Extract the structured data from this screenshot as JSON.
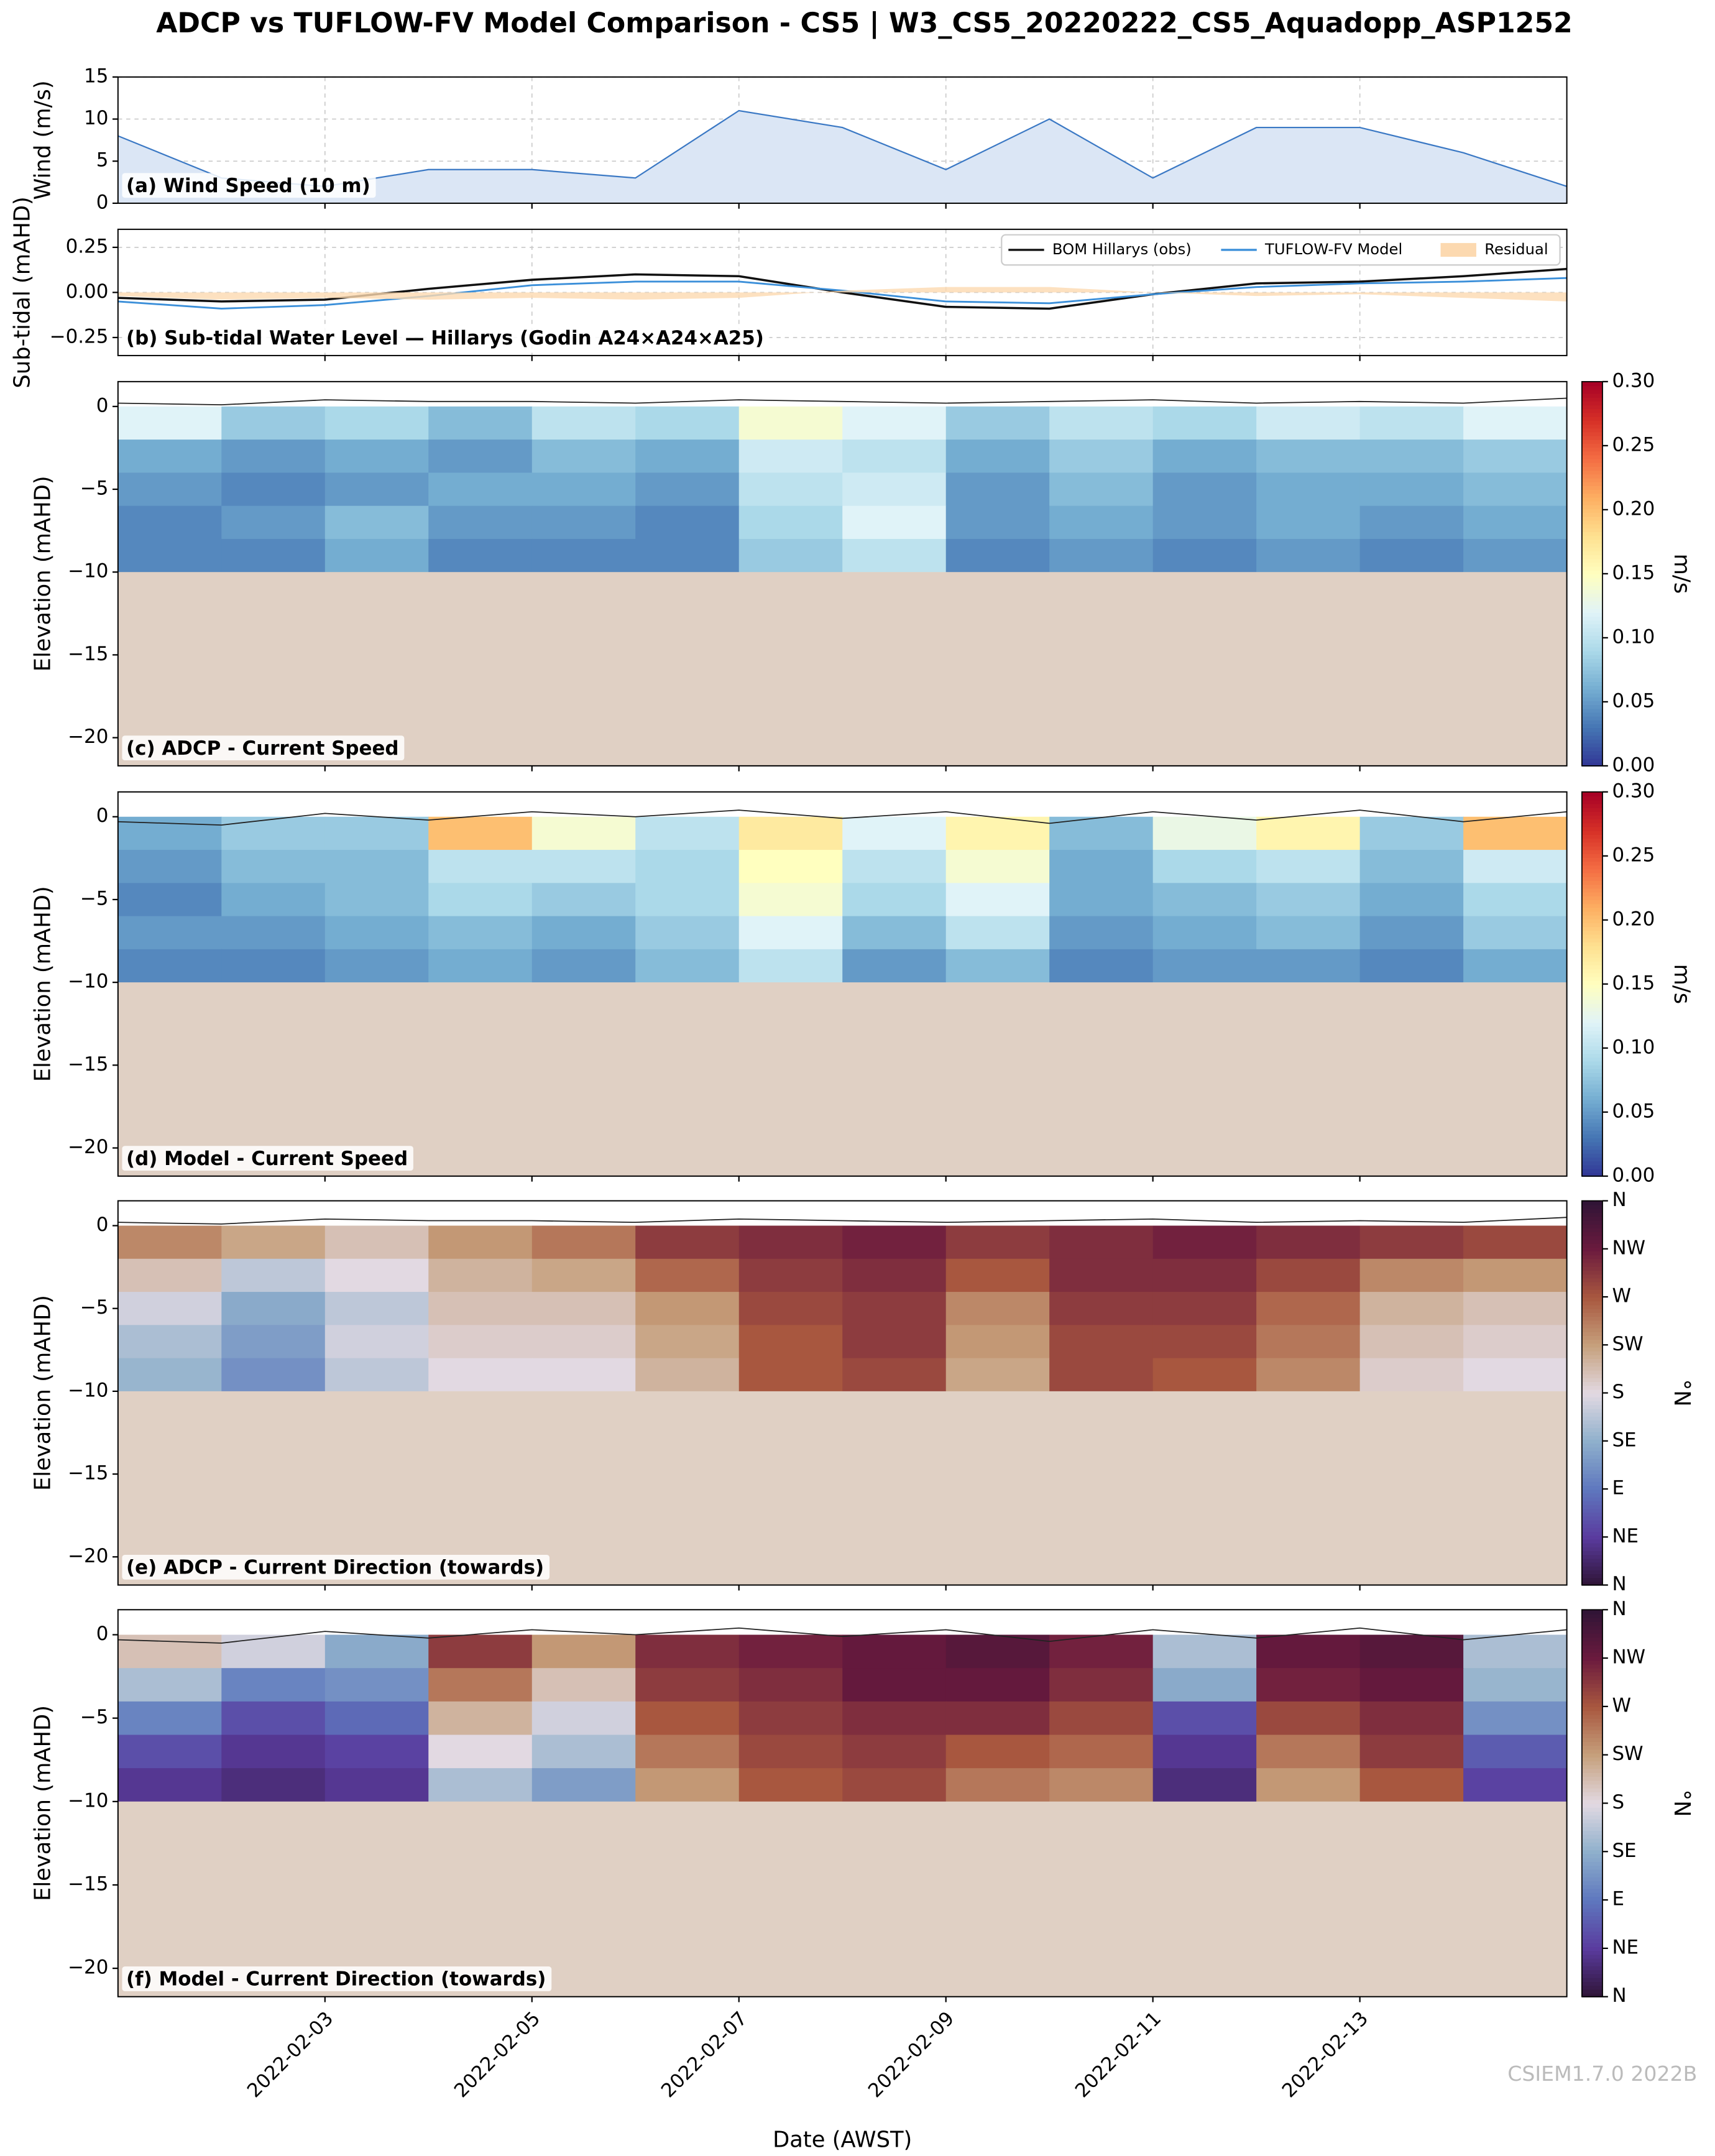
{
  "title": "ADCP vs TUFLOW-FV Model Comparison - CS5 | W3_CS5_20220222_CS5_Aquadopp_ASP1252",
  "watermark": "CSIEM1.7.0 2022B",
  "chart_data": [
    {
      "type": "area",
      "ylabel": "Wind (m/s)",
      "annotation": "(a) Wind Speed (10 m)",
      "color": "#3a78c4",
      "grid": true,
      "x": [
        "2022-02-01",
        "2022-02-02",
        "2022-02-03",
        "2022-02-04",
        "2022-02-05",
        "2022-02-06",
        "2022-02-07",
        "2022-02-08",
        "2022-02-09",
        "2022-02-10",
        "2022-02-11",
        "2022-02-12",
        "2022-02-13",
        "2022-02-14",
        "2022-02-15"
      ],
      "values": [
        8,
        3,
        2,
        4,
        4,
        3,
        11,
        9,
        4,
        10,
        3,
        9,
        9,
        6,
        2
      ],
      "xlim": [
        "2022-02-01",
        "2022-02-15"
      ],
      "xticks": [
        "2022-02-03",
        "2022-02-05",
        "2022-02-07",
        "2022-02-09",
        "2022-02-11",
        "2022-02-13"
      ],
      "ylim": [
        0,
        15
      ],
      "yticks": [
        0,
        5,
        10,
        15
      ]
    },
    {
      "type": "line",
      "ylabel": "Sub-tidal (mAHD)",
      "annotation": "(b) Sub-tidal Water Level — Hillarys (Godin A24×A24×A25)",
      "grid": true,
      "legend": "upper right",
      "x": [
        "2022-02-01",
        "2022-02-02",
        "2022-02-03",
        "2022-02-04",
        "2022-02-05",
        "2022-02-06",
        "2022-02-07",
        "2022-02-08",
        "2022-02-09",
        "2022-02-10",
        "2022-02-11",
        "2022-02-12",
        "2022-02-13",
        "2022-02-14",
        "2022-02-15"
      ],
      "series": [
        {
          "name": "BOM Hillarys (obs)",
          "color": "#111111",
          "values": [
            -0.03,
            -0.05,
            -0.04,
            0.02,
            0.07,
            0.1,
            0.09,
            0.0,
            -0.08,
            -0.09,
            -0.01,
            0.05,
            0.06,
            0.09,
            0.13
          ]
        },
        {
          "name": "TUFLOW-FV Model",
          "color": "#3b8fd9",
          "values": [
            -0.05,
            -0.09,
            -0.07,
            -0.02,
            0.04,
            0.06,
            0.06,
            0.01,
            -0.05,
            -0.06,
            -0.01,
            0.03,
            0.05,
            0.06,
            0.08
          ]
        },
        {
          "name": "Residual",
          "color": "#fcd9b0",
          "type": "area",
          "values": [
            -0.02,
            -0.04,
            -0.03,
            -0.04,
            -0.03,
            -0.04,
            -0.03,
            0.01,
            0.03,
            0.03,
            0.0,
            -0.02,
            -0.01,
            -0.03,
            -0.05
          ]
        }
      ],
      "xlim": [
        "2022-02-01",
        "2022-02-15"
      ],
      "xticks": [
        "2022-02-03",
        "2022-02-05",
        "2022-02-07",
        "2022-02-09",
        "2022-02-11",
        "2022-02-13"
      ],
      "ylim": [
        -0.35,
        0.35
      ],
      "yticks": [
        {
          "value": -0.25,
          "label": "−0.25"
        },
        {
          "value": 0,
          "label": "0.00"
        },
        0.25
      ]
    },
    {
      "type": "heatmap",
      "ylabel": "Elevation (mAHD)",
      "annotation": "(c) ADCP - Current Speed",
      "colormap": "RdYlBu_r",
      "bed_elevation": -10,
      "x": [
        "2022-02-01",
        "2022-02-02",
        "2022-02-03",
        "2022-02-04",
        "2022-02-05",
        "2022-02-06",
        "2022-02-07",
        "2022-02-08",
        "2022-02-09",
        "2022-02-10",
        "2022-02-11",
        "2022-02-12",
        "2022-02-13",
        "2022-02-14",
        "2022-02-15"
      ],
      "surface": [
        0.2,
        0.1,
        0.4,
        0.3,
        0.3,
        0.2,
        0.4,
        0.3,
        0.2,
        0.3,
        0.4,
        0.2,
        0.3,
        0.2,
        0.5
      ],
      "y_edges": [
        0,
        -2,
        -4,
        -6,
        -8,
        -10
      ],
      "values": [
        [
          0.12,
          0.08,
          0.09,
          0.07,
          0.1,
          0.09,
          0.14,
          0.12,
          0.08,
          0.1,
          0.09,
          0.11,
          0.1,
          0.12
        ],
        [
          0.06,
          0.05,
          0.06,
          0.05,
          0.07,
          0.06,
          0.11,
          0.1,
          0.06,
          0.08,
          0.06,
          0.07,
          0.07,
          0.08
        ],
        [
          0.05,
          0.04,
          0.05,
          0.06,
          0.06,
          0.05,
          0.1,
          0.11,
          0.05,
          0.07,
          0.05,
          0.06,
          0.06,
          0.07
        ],
        [
          0.04,
          0.05,
          0.07,
          0.05,
          0.05,
          0.04,
          0.09,
          0.12,
          0.05,
          0.06,
          0.05,
          0.06,
          0.05,
          0.06
        ],
        [
          0.04,
          0.04,
          0.06,
          0.04,
          0.04,
          0.04,
          0.08,
          0.1,
          0.04,
          0.05,
          0.04,
          0.05,
          0.04,
          0.05
        ]
      ],
      "xlim": [
        "2022-02-01",
        "2022-02-15"
      ],
      "xticks": [
        "2022-02-03",
        "2022-02-05",
        "2022-02-07",
        "2022-02-09",
        "2022-02-11",
        "2022-02-13"
      ],
      "ylim": [
        -21.7,
        1.5
      ],
      "yticks": [
        {
          "value": -20,
          "label": "−20"
        },
        {
          "value": -15,
          "label": "−15"
        },
        {
          "value": -10,
          "label": "−10"
        },
        {
          "value": -5,
          "label": "−5"
        },
        0
      ],
      "colorbar": {
        "label": "m/s",
        "ylim": [
          0,
          0.3
        ],
        "yticks": [
          {
            "value": 0,
            "label": "0.00"
          },
          0.05,
          {
            "value": 0.1,
            "label": "0.10"
          },
          0.15,
          {
            "value": 0.2,
            "label": "0.20"
          },
          0.25,
          {
            "value": 0.3,
            "label": "0.30"
          }
        ]
      }
    },
    {
      "type": "heatmap",
      "ylabel": "Elevation (mAHD)",
      "annotation": "(d) Model - Current Speed",
      "colormap": "RdYlBu_r",
      "bed_elevation": -10,
      "x": [
        "2022-02-01",
        "2022-02-02",
        "2022-02-03",
        "2022-02-04",
        "2022-02-05",
        "2022-02-06",
        "2022-02-07",
        "2022-02-08",
        "2022-02-09",
        "2022-02-10",
        "2022-02-11",
        "2022-02-12",
        "2022-02-13",
        "2022-02-14",
        "2022-02-15"
      ],
      "surface": [
        -0.3,
        -0.5,
        0.2,
        -0.2,
        0.3,
        0.0,
        0.4,
        -0.1,
        0.3,
        -0.4,
        0.3,
        -0.2,
        0.4,
        -0.3,
        0.3
      ],
      "y_edges": [
        0,
        -2,
        -4,
        -6,
        -8,
        -10
      ],
      "values": [
        [
          0.06,
          0.08,
          0.08,
          0.2,
          0.14,
          0.1,
          0.17,
          0.12,
          0.16,
          0.07,
          0.13,
          0.16,
          0.08,
          0.2
        ],
        [
          0.05,
          0.07,
          0.07,
          0.1,
          0.1,
          0.09,
          0.15,
          0.1,
          0.14,
          0.06,
          0.09,
          0.1,
          0.07,
          0.11
        ],
        [
          0.04,
          0.06,
          0.07,
          0.09,
          0.08,
          0.09,
          0.14,
          0.09,
          0.12,
          0.06,
          0.07,
          0.08,
          0.06,
          0.09
        ],
        [
          0.05,
          0.05,
          0.06,
          0.07,
          0.06,
          0.08,
          0.12,
          0.07,
          0.1,
          0.05,
          0.06,
          0.07,
          0.05,
          0.08
        ],
        [
          0.04,
          0.04,
          0.05,
          0.06,
          0.05,
          0.07,
          0.1,
          0.05,
          0.07,
          0.04,
          0.05,
          0.05,
          0.04,
          0.06
        ]
      ],
      "xlim": [
        "2022-02-01",
        "2022-02-15"
      ],
      "xticks": [
        "2022-02-03",
        "2022-02-05",
        "2022-02-07",
        "2022-02-09",
        "2022-02-11",
        "2022-02-13"
      ],
      "ylim": [
        -21.7,
        1.5
      ],
      "yticks": [
        {
          "value": -20,
          "label": "−20"
        },
        {
          "value": -15,
          "label": "−15"
        },
        {
          "value": -10,
          "label": "−10"
        },
        {
          "value": -5,
          "label": "−5"
        },
        0
      ],
      "colorbar": {
        "label": "m/s",
        "ylim": [
          0,
          0.3
        ],
        "yticks": [
          {
            "value": 0,
            "label": "0.00"
          },
          0.05,
          {
            "value": 0.1,
            "label": "0.10"
          },
          0.15,
          {
            "value": 0.2,
            "label": "0.20"
          },
          0.25,
          {
            "value": 0.3,
            "label": "0.30"
          }
        ]
      }
    },
    {
      "type": "heatmap",
      "ylabel": "Elevation (mAHD)",
      "annotation": "(e) ADCP - Current Direction (towards)",
      "colormap": "twilight_shifted",
      "bed_elevation": -10,
      "x": [
        "2022-02-01",
        "2022-02-02",
        "2022-02-03",
        "2022-02-04",
        "2022-02-05",
        "2022-02-06",
        "2022-02-07",
        "2022-02-08",
        "2022-02-09",
        "2022-02-10",
        "2022-02-11",
        "2022-02-12",
        "2022-02-13",
        "2022-02-14",
        "2022-02-15"
      ],
      "surface": [
        0.2,
        0.1,
        0.4,
        0.3,
        0.3,
        0.2,
        0.4,
        0.3,
        0.2,
        0.3,
        0.4,
        0.2,
        0.3,
        0.2,
        0.5
      ],
      "y_edges": [
        0,
        -2,
        -4,
        -6,
        -8,
        -10
      ],
      "values": [
        [
          240,
          220,
          200,
          230,
          250,
          290,
          300,
          310,
          290,
          300,
          310,
          300,
          290,
          280
        ],
        [
          200,
          160,
          180,
          210,
          220,
          260,
          290,
          300,
          270,
          300,
          300,
          280,
          240,
          230
        ],
        [
          170,
          130,
          160,
          200,
          200,
          230,
          280,
          290,
          240,
          290,
          290,
          260,
          210,
          200
        ],
        [
          150,
          120,
          170,
          190,
          190,
          220,
          270,
          290,
          230,
          280,
          280,
          250,
          200,
          190
        ],
        [
          140,
          110,
          160,
          180,
          180,
          210,
          270,
          280,
          220,
          280,
          270,
          240,
          190,
          180
        ]
      ],
      "xlim": [
        "2022-02-01",
        "2022-02-15"
      ],
      "xticks": [
        "2022-02-03",
        "2022-02-05",
        "2022-02-07",
        "2022-02-09",
        "2022-02-11",
        "2022-02-13"
      ],
      "ylim": [
        -21.7,
        1.5
      ],
      "yticks": [
        {
          "value": -20,
          "label": "−20"
        },
        {
          "value": -15,
          "label": "−15"
        },
        {
          "value": -10,
          "label": "−10"
        },
        {
          "value": -5,
          "label": "−5"
        },
        0
      ],
      "colorbar": {
        "label": "°N",
        "ylim": [
          0,
          360
        ],
        "yticks": [
          {
            "value": 0,
            "label": "N"
          },
          {
            "value": 45,
            "label": "NE"
          },
          {
            "value": 90,
            "label": "E"
          },
          {
            "value": 135,
            "label": "SE"
          },
          {
            "value": 180,
            "label": "S"
          },
          {
            "value": 225,
            "label": "SW"
          },
          {
            "value": 270,
            "label": "W"
          },
          {
            "value": 315,
            "label": "NW"
          },
          {
            "value": 360,
            "label": "N"
          }
        ]
      }
    },
    {
      "type": "heatmap",
      "ylabel": "Elevation (mAHD)",
      "annotation": "(f) Model - Current Direction (towards)",
      "colormap": "twilight_shifted",
      "bed_elevation": -10,
      "xlabel": "Date (AWST)",
      "x": [
        "2022-02-01",
        "2022-02-02",
        "2022-02-03",
        "2022-02-04",
        "2022-02-05",
        "2022-02-06",
        "2022-02-07",
        "2022-02-08",
        "2022-02-09",
        "2022-02-10",
        "2022-02-11",
        "2022-02-12",
        "2022-02-13",
        "2022-02-14",
        "2022-02-15"
      ],
      "surface": [
        -0.3,
        -0.5,
        0.2,
        -0.2,
        0.3,
        0.0,
        0.4,
        -0.1,
        0.3,
        -0.4,
        0.3,
        -0.2,
        0.4,
        -0.3,
        0.3
      ],
      "y_edges": [
        0,
        -2,
        -4,
        -6,
        -8,
        -10
      ],
      "values": [
        [
          200,
          170,
          130,
          290,
          230,
          300,
          310,
          320,
          330,
          310,
          150,
          320,
          330,
          150
        ],
        [
          150,
          100,
          110,
          250,
          200,
          290,
          300,
          320,
          320,
          300,
          130,
          310,
          320,
          140
        ],
        [
          100,
          60,
          80,
          210,
          170,
          270,
          290,
          300,
          300,
          280,
          60,
          280,
          300,
          110
        ],
        [
          60,
          40,
          50,
          180,
          150,
          250,
          280,
          290,
          270,
          260,
          40,
          250,
          290,
          70
        ],
        [
          40,
          30,
          40,
          150,
          120,
          230,
          270,
          280,
          250,
          240,
          30,
          230,
          270,
          50
        ]
      ],
      "xlim": [
        "2022-02-01",
        "2022-02-15"
      ],
      "xticks": [
        "2022-02-03",
        "2022-02-05",
        "2022-02-07",
        "2022-02-09",
        "2022-02-11",
        "2022-02-13"
      ],
      "ylim": [
        -21.7,
        1.5
      ],
      "yticks": [
        {
          "value": -20,
          "label": "−20"
        },
        {
          "value": -15,
          "label": "−15"
        },
        {
          "value": -10,
          "label": "−10"
        },
        {
          "value": -5,
          "label": "−5"
        },
        0
      ],
      "colorbar": {
        "label": "°N",
        "ylim": [
          0,
          360
        ],
        "yticks": [
          {
            "value": 0,
            "label": "N"
          },
          {
            "value": 45,
            "label": "NE"
          },
          {
            "value": 90,
            "label": "E"
          },
          {
            "value": 135,
            "label": "SE"
          },
          {
            "value": 180,
            "label": "S"
          },
          {
            "value": 225,
            "label": "SW"
          },
          {
            "value": 270,
            "label": "W"
          },
          {
            "value": 315,
            "label": "NW"
          },
          {
            "value": 360,
            "label": "N"
          }
        ]
      }
    }
  ]
}
